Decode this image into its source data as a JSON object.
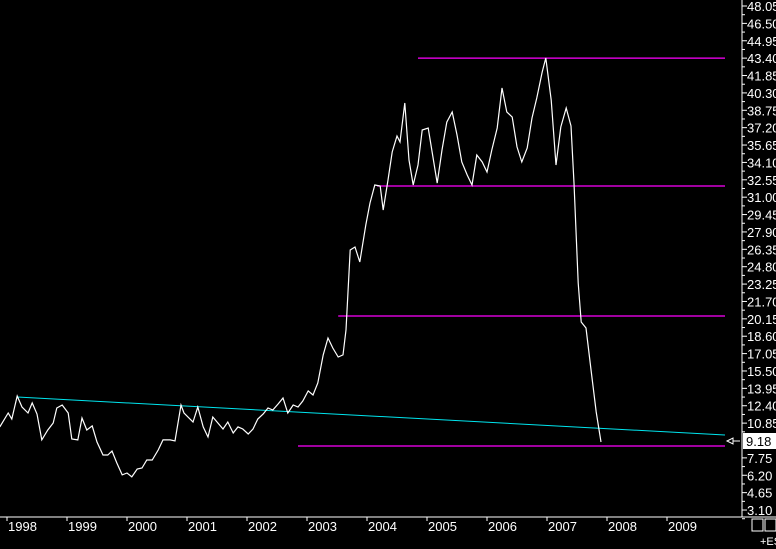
{
  "chart_data": {
    "type": "line",
    "title": "",
    "xlabel": "",
    "ylabel": "",
    "xlim": [
      1997.88,
      2009.97
    ],
    "ylim": [
      3.1,
      48.05
    ],
    "grid": false,
    "x_tick_labels": [
      "1998",
      "1999",
      "2000",
      "2001",
      "2002",
      "2003",
      "2004",
      "2005",
      "2006",
      "2007",
      "2008",
      "2009"
    ],
    "y_tick_labels": [
      "48.05",
      "46.50",
      "44.95",
      "43.40",
      "41.85",
      "40.30",
      "38.75",
      "37.20",
      "35.65",
      "34.10",
      "32.55",
      "31.00",
      "29.45",
      "27.90",
      "26.35",
      "24.80",
      "23.25",
      "21.70",
      "20.15",
      "18.60",
      "17.05",
      "15.50",
      "13.95",
      "12.40",
      "10.85",
      "9.18",
      "7.75",
      "6.20",
      "4.65",
      "3.10"
    ],
    "last_price": "9.18",
    "series": [
      {
        "color": "#ffffff",
        "points": [
          [
            1997.88,
            10.51
          ],
          [
            1998.02,
            11.75
          ],
          [
            1998.08,
            11.22
          ],
          [
            1998.17,
            13.27
          ],
          [
            1998.25,
            12.29
          ],
          [
            1998.35,
            11.75
          ],
          [
            1998.42,
            12.65
          ],
          [
            1998.5,
            11.66
          ],
          [
            1998.58,
            9.35
          ],
          [
            1998.68,
            10.24
          ],
          [
            1998.77,
            10.86
          ],
          [
            1998.83,
            12.2
          ],
          [
            1998.92,
            12.47
          ],
          [
            1999.02,
            11.75
          ],
          [
            1999.08,
            9.43
          ],
          [
            1999.18,
            9.35
          ],
          [
            1999.25,
            11.31
          ],
          [
            1999.33,
            10.24
          ],
          [
            1999.42,
            10.6
          ],
          [
            1999.5,
            9.17
          ],
          [
            1999.6,
            8.01
          ],
          [
            1999.68,
            8.01
          ],
          [
            1999.75,
            8.36
          ],
          [
            1999.83,
            7.3
          ],
          [
            1999.92,
            6.23
          ],
          [
            2000.0,
            6.4
          ],
          [
            2000.08,
            6.05
          ],
          [
            2000.17,
            6.76
          ],
          [
            2000.25,
            6.85
          ],
          [
            2000.33,
            7.56
          ],
          [
            2000.42,
            7.56
          ],
          [
            2000.52,
            8.45
          ],
          [
            2000.6,
            9.35
          ],
          [
            2000.72,
            9.35
          ],
          [
            2000.8,
            9.26
          ],
          [
            2000.9,
            12.47
          ],
          [
            2000.95,
            11.75
          ],
          [
            2001.1,
            10.95
          ],
          [
            2001.18,
            12.29
          ],
          [
            2001.27,
            10.51
          ],
          [
            2001.35,
            9.61
          ],
          [
            2001.43,
            11.4
          ],
          [
            2001.6,
            10.33
          ],
          [
            2001.68,
            10.95
          ],
          [
            2001.77,
            9.97
          ],
          [
            2001.85,
            10.51
          ],
          [
            2001.93,
            10.33
          ],
          [
            2002.02,
            9.88
          ],
          [
            2002.1,
            10.33
          ],
          [
            2002.18,
            11.22
          ],
          [
            2002.27,
            11.66
          ],
          [
            2002.35,
            12.2
          ],
          [
            2002.43,
            12.02
          ],
          [
            2002.52,
            12.56
          ],
          [
            2002.6,
            13.09
          ],
          [
            2002.68,
            11.75
          ],
          [
            2002.77,
            12.47
          ],
          [
            2002.85,
            12.29
          ],
          [
            2002.93,
            12.82
          ],
          [
            2003.02,
            13.72
          ],
          [
            2003.1,
            13.36
          ],
          [
            2003.18,
            14.43
          ],
          [
            2003.27,
            16.93
          ],
          [
            2003.35,
            18.44
          ],
          [
            2003.43,
            17.55
          ],
          [
            2003.52,
            16.75
          ],
          [
            2003.6,
            16.93
          ],
          [
            2003.65,
            19.16
          ],
          [
            2003.72,
            26.29
          ],
          [
            2003.8,
            26.56
          ],
          [
            2003.88,
            25.22
          ],
          [
            2003.98,
            28.52
          ],
          [
            2004.05,
            30.48
          ],
          [
            2004.13,
            32.09
          ],
          [
            2004.22,
            32.0
          ],
          [
            2004.27,
            29.86
          ],
          [
            2004.35,
            32.53
          ],
          [
            2004.42,
            35.03
          ],
          [
            2004.5,
            36.46
          ],
          [
            2004.55,
            35.92
          ],
          [
            2004.63,
            39.4
          ],
          [
            2004.7,
            34.32
          ],
          [
            2004.77,
            32.09
          ],
          [
            2004.85,
            33.87
          ],
          [
            2004.92,
            36.99
          ],
          [
            2005.02,
            37.17
          ],
          [
            2005.08,
            35.21
          ],
          [
            2005.17,
            32.26
          ],
          [
            2005.25,
            35.21
          ],
          [
            2005.33,
            37.7
          ],
          [
            2005.42,
            38.6
          ],
          [
            2005.5,
            36.55
          ],
          [
            2005.58,
            34.14
          ],
          [
            2005.67,
            32.98
          ],
          [
            2005.75,
            32.09
          ],
          [
            2005.83,
            34.76
          ],
          [
            2005.92,
            34.14
          ],
          [
            2006.0,
            33.25
          ],
          [
            2006.08,
            35.21
          ],
          [
            2006.17,
            37.17
          ],
          [
            2006.25,
            40.74
          ],
          [
            2006.33,
            38.6
          ],
          [
            2006.42,
            38.15
          ],
          [
            2006.5,
            35.48
          ],
          [
            2006.58,
            34.14
          ],
          [
            2006.67,
            35.39
          ],
          [
            2006.75,
            38.06
          ],
          [
            2006.83,
            39.85
          ],
          [
            2006.92,
            42.16
          ],
          [
            2006.98,
            43.41
          ],
          [
            2007.07,
            39.67
          ],
          [
            2007.15,
            33.87
          ],
          [
            2007.23,
            37.26
          ],
          [
            2007.32,
            38.95
          ],
          [
            2007.4,
            37.35
          ],
          [
            2007.45,
            32.26
          ],
          [
            2007.52,
            23.35
          ],
          [
            2007.57,
            19.87
          ],
          [
            2007.65,
            19.33
          ],
          [
            2007.73,
            15.77
          ],
          [
            2007.82,
            11.84
          ],
          [
            2007.9,
            9.17
          ]
        ]
      }
    ],
    "horizontal_lines": [
      {
        "color": "#ff00ff",
        "value": 43.4,
        "from": 2004.85,
        "to": 2009.97
      },
      {
        "color": "#ff00ff",
        "value": 32.0,
        "from": 2004.17,
        "to": 2009.97
      },
      {
        "color": "#ff00ff",
        "value": 20.4,
        "from": 2003.52,
        "to": 2009.97
      },
      {
        "color": "#ff00ff",
        "value": 8.81,
        "from": 2002.85,
        "to": 2009.97
      }
    ],
    "trendline": {
      "color": "#00e5ee",
      "from": [
        1998.17,
        13.18
      ],
      "to": [
        2009.97,
        9.79
      ]
    },
    "footer_text": "+ES"
  }
}
